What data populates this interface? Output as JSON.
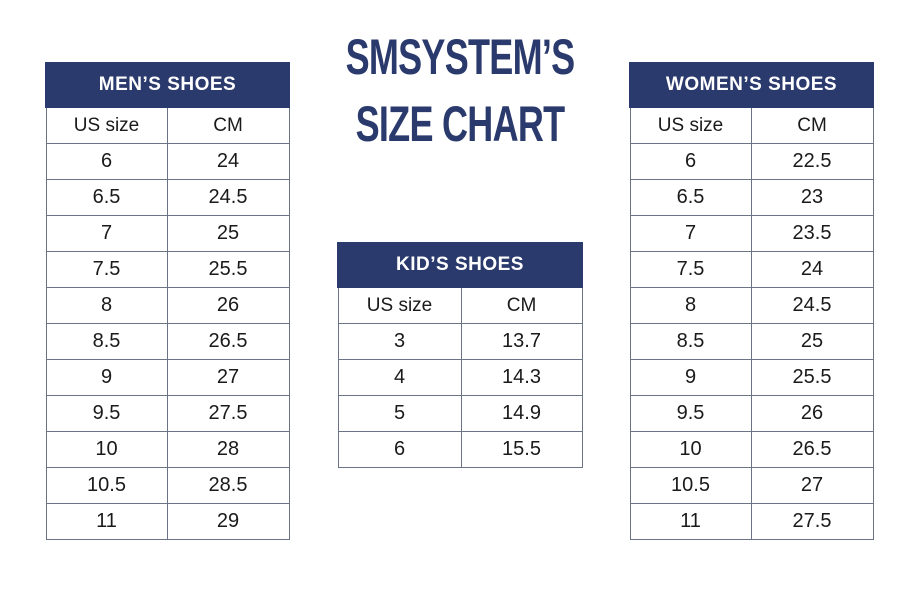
{
  "title": {
    "line1": "SMSYSTEM’S",
    "line2": "SIZE CHART"
  },
  "men": {
    "header": "MEN’S SHOES",
    "col_us": "US size",
    "col_cm": "CM",
    "rows": [
      {
        "us": "6",
        "cm": "24"
      },
      {
        "us": "6.5",
        "cm": "24.5"
      },
      {
        "us": "7",
        "cm": "25"
      },
      {
        "us": "7.5",
        "cm": "25.5"
      },
      {
        "us": "8",
        "cm": "26"
      },
      {
        "us": "8.5",
        "cm": "26.5"
      },
      {
        "us": "9",
        "cm": "27"
      },
      {
        "us": "9.5",
        "cm": "27.5"
      },
      {
        "us": "10",
        "cm": "28"
      },
      {
        "us": "10.5",
        "cm": "28.5"
      },
      {
        "us": "11",
        "cm": "29"
      }
    ]
  },
  "kid": {
    "header": "KID’S SHOES",
    "col_us": "US size",
    "col_cm": "CM",
    "rows": [
      {
        "us": "3",
        "cm": "13.7"
      },
      {
        "us": "4",
        "cm": "14.3"
      },
      {
        "us": "5",
        "cm": "14.9"
      },
      {
        "us": "6",
        "cm": "15.5"
      }
    ]
  },
  "women": {
    "header": "WOMEN’S SHOES",
    "col_us": "US size",
    "col_cm": "CM",
    "rows": [
      {
        "us": "6",
        "cm": "22.5"
      },
      {
        "us": "6.5",
        "cm": "23"
      },
      {
        "us": "7",
        "cm": "23.5"
      },
      {
        "us": "7.5",
        "cm": "24"
      },
      {
        "us": "8",
        "cm": "24.5"
      },
      {
        "us": "8.5",
        "cm": "25"
      },
      {
        "us": "9",
        "cm": "25.5"
      },
      {
        "us": "9.5",
        "cm": "26"
      },
      {
        "us": "10",
        "cm": "26.5"
      },
      {
        "us": "10.5",
        "cm": "27"
      },
      {
        "us": "11",
        "cm": "27.5"
      }
    ]
  },
  "colors": {
    "header_bg": "#2b3a6d",
    "title": "#2b3a6d",
    "grid": "#6b7386"
  }
}
